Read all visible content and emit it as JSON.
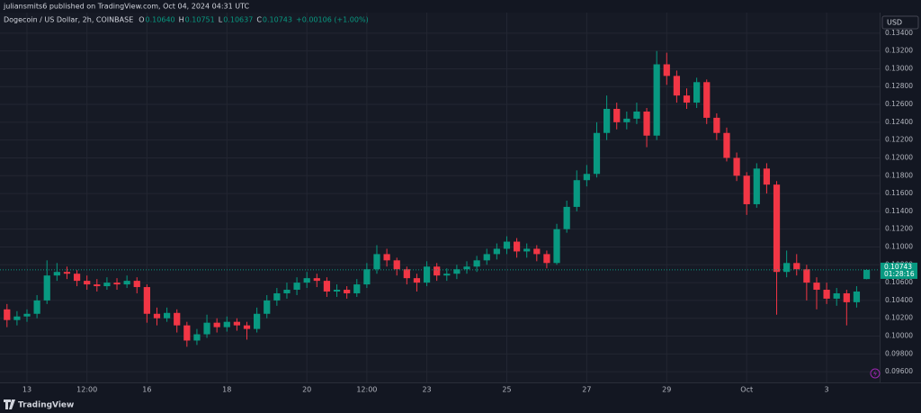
{
  "header": {
    "published": "juliansmits6 published on TradingView.com, Oct 04, 2024 04:31 UTC",
    "symbol": "Dogecoin / US Dollar, 2h, COINBASE",
    "ohlc": [
      {
        "label": "O",
        "value": "0.10640"
      },
      {
        "label": "H",
        "value": "0.10751"
      },
      {
        "label": "L",
        "value": "0.10637"
      },
      {
        "label": "C",
        "value": "0.10743"
      }
    ],
    "change": "+0.00106 (+1.00%)",
    "currency": "USD",
    "last_price_label": "0.10743",
    "countdown": "01:28:16"
  },
  "footer": {
    "brand": "TradingView"
  },
  "chart_data": {
    "type": "candlestick",
    "up_color": "#089981",
    "down_color": "#f23645",
    "grid": true,
    "xlim": [
      -0.7,
      87.3
    ],
    "ylim": [
      0.0948,
      0.1357
    ],
    "xticks": [
      {
        "value": 2,
        "label": "13"
      },
      {
        "value": 8,
        "label": "12:00"
      },
      {
        "value": 14,
        "label": "16"
      },
      {
        "value": 22,
        "label": "18"
      },
      {
        "value": 30,
        "label": "20"
      },
      {
        "value": 36,
        "label": "12:00"
      },
      {
        "value": 42,
        "label": "23"
      },
      {
        "value": 50,
        "label": "25"
      },
      {
        "value": 58,
        "label": "27"
      },
      {
        "value": 66,
        "label": "29"
      },
      {
        "value": 74,
        "label": "Oct"
      },
      {
        "value": 82,
        "label": "3"
      }
    ],
    "yticks": [
      {
        "value": 0.096,
        "label": "0.09600"
      },
      {
        "value": 0.098,
        "label": "0.09800"
      },
      {
        "value": 0.1,
        "label": "0.10000"
      },
      {
        "value": 0.102,
        "label": "0.10200"
      },
      {
        "value": 0.104,
        "label": "0.10400"
      },
      {
        "value": 0.106,
        "label": "0.10600"
      },
      {
        "value": 0.108,
        "label": "0.10800"
      },
      {
        "value": 0.11,
        "label": "0.11000"
      },
      {
        "value": 0.112,
        "label": "0.11200"
      },
      {
        "value": 0.114,
        "label": "0.11400"
      },
      {
        "value": 0.116,
        "label": "0.11600"
      },
      {
        "value": 0.118,
        "label": "0.11800"
      },
      {
        "value": 0.12,
        "label": "0.12000"
      },
      {
        "value": 0.122,
        "label": "0.12200"
      },
      {
        "value": 0.124,
        "label": "0.12400"
      },
      {
        "value": 0.126,
        "label": "0.12600"
      },
      {
        "value": 0.128,
        "label": "0.12800"
      },
      {
        "value": 0.13,
        "label": "0.13000"
      },
      {
        "value": 0.132,
        "label": "0.13200"
      },
      {
        "value": 0.134,
        "label": "0.13400"
      }
    ],
    "open": [
      0.103,
      0.1018,
      0.1022,
      0.1025,
      0.104,
      0.1068,
      0.1072,
      0.107,
      0.1062,
      0.1058,
      0.1056,
      0.106,
      0.1058,
      0.1062,
      0.1055,
      0.1025,
      0.102,
      0.1026,
      0.1012,
      0.0995,
      0.1002,
      0.1015,
      0.101,
      0.1016,
      0.1012,
      0.1008,
      0.1025,
      0.104,
      0.1048,
      0.1052,
      0.106,
      0.1065,
      0.1062,
      0.105,
      0.1052,
      0.1048,
      0.1058,
      0.1075,
      0.1092,
      0.1085,
      0.1075,
      0.1065,
      0.106,
      0.1078,
      0.1068,
      0.107,
      0.1075,
      0.1078,
      0.1085,
      0.1092,
      0.1098,
      0.1106,
      0.1095,
      0.1098,
      0.1092,
      0.1082,
      0.112,
      0.1145,
      0.1175,
      0.1182,
      0.1228,
      0.1255,
      0.124,
      0.1244,
      0.1252,
      0.1225,
      0.1305,
      0.1292,
      0.127,
      0.1262,
      0.1285,
      0.1245,
      0.1228,
      0.12,
      0.118,
      0.1148,
      0.1188,
      0.117,
      0.1072,
      0.1082,
      0.1075,
      0.106,
      0.1052,
      0.1042,
      0.1048,
      0.1038,
      0.1064
    ],
    "high": [
      0.1036,
      0.1028,
      0.103,
      0.1046,
      0.1085,
      0.1082,
      0.1078,
      0.1074,
      0.1068,
      0.1064,
      0.1066,
      0.1065,
      0.1068,
      0.1066,
      0.1058,
      0.1032,
      0.1032,
      0.103,
      0.1016,
      0.1008,
      0.1024,
      0.102,
      0.1022,
      0.102,
      0.1016,
      0.1032,
      0.1046,
      0.1054,
      0.106,
      0.1066,
      0.1072,
      0.107,
      0.1066,
      0.1058,
      0.1056,
      0.1064,
      0.1082,
      0.1102,
      0.1098,
      0.1088,
      0.1078,
      0.107,
      0.1084,
      0.1082,
      0.1076,
      0.108,
      0.1084,
      0.109,
      0.1098,
      0.1104,
      0.1112,
      0.111,
      0.1104,
      0.1102,
      0.1096,
      0.1126,
      0.1152,
      0.1186,
      0.1192,
      0.124,
      0.127,
      0.1262,
      0.1252,
      0.1262,
      0.1256,
      0.132,
      0.1318,
      0.1298,
      0.1278,
      0.129,
      0.1288,
      0.125,
      0.1234,
      0.1206,
      0.1184,
      0.1194,
      0.1194,
      0.1174,
      0.1096,
      0.1092,
      0.108,
      0.1066,
      0.106,
      0.1054,
      0.1052,
      0.1056,
      0.10751
    ],
    "low": [
      0.101,
      0.1012,
      0.1016,
      0.102,
      0.1036,
      0.1062,
      0.1064,
      0.1056,
      0.1052,
      0.105,
      0.1052,
      0.1052,
      0.1054,
      0.1048,
      0.1015,
      0.1012,
      0.1016,
      0.1004,
      0.0988,
      0.099,
      0.0998,
      0.1004,
      0.1005,
      0.1006,
      0.0996,
      0.1004,
      0.102,
      0.1034,
      0.1042,
      0.1046,
      0.1054,
      0.1055,
      0.1044,
      0.1044,
      0.1042,
      0.1044,
      0.1054,
      0.107,
      0.1078,
      0.1068,
      0.1058,
      0.105,
      0.1056,
      0.1062,
      0.1062,
      0.1064,
      0.107,
      0.1072,
      0.108,
      0.1086,
      0.1092,
      0.1088,
      0.1088,
      0.1084,
      0.1076,
      0.108,
      0.1116,
      0.114,
      0.1168,
      0.1178,
      0.122,
      0.1232,
      0.1232,
      0.1238,
      0.1212,
      0.122,
      0.1282,
      0.1262,
      0.1255,
      0.1256,
      0.1238,
      0.122,
      0.1196,
      0.1174,
      0.1136,
      0.1144,
      0.116,
      0.1024,
      0.1066,
      0.1068,
      0.104,
      0.103,
      0.1036,
      0.1034,
      0.1012,
      0.1032,
      0.10637
    ],
    "close": [
      0.1018,
      0.1022,
      0.1025,
      0.104,
      0.1068,
      0.1072,
      0.107,
      0.1062,
      0.1058,
      0.1056,
      0.106,
      0.1058,
      0.1062,
      0.1055,
      0.1025,
      0.102,
      0.1026,
      0.1012,
      0.0995,
      0.1002,
      0.1015,
      0.101,
      0.1016,
      0.1012,
      0.1008,
      0.1025,
      0.104,
      0.1048,
      0.1052,
      0.106,
      0.1065,
      0.1062,
      0.105,
      0.1052,
      0.1048,
      0.1058,
      0.1075,
      0.1092,
      0.1085,
      0.1075,
      0.1065,
      0.106,
      0.1078,
      0.1068,
      0.107,
      0.1075,
      0.1078,
      0.1085,
      0.1092,
      0.1098,
      0.1106,
      0.1095,
      0.1098,
      0.1092,
      0.1082,
      0.112,
      0.1145,
      0.1175,
      0.1182,
      0.1228,
      0.1255,
      0.124,
      0.1244,
      0.1252,
      0.1225,
      0.1305,
      0.1292,
      0.127,
      0.1262,
      0.1285,
      0.1245,
      0.1228,
      0.12,
      0.118,
      0.1148,
      0.1188,
      0.117,
      0.1072,
      0.1082,
      0.1075,
      0.106,
      0.1052,
      0.1042,
      0.1048,
      0.1038,
      0.105,
      0.10743
    ]
  }
}
